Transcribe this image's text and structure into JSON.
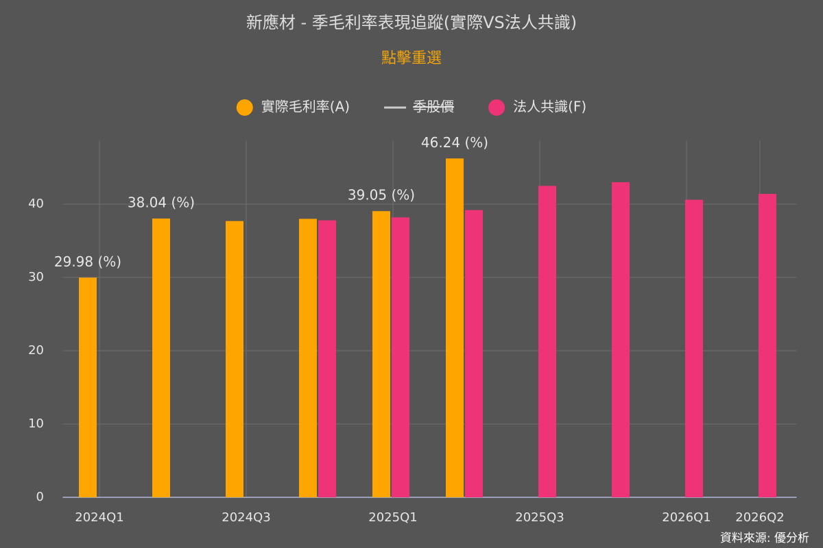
{
  "chart_data": {
    "type": "bar",
    "title": "新應材 - 季毛利率表現追蹤(實際VS法人共識)",
    "subtitle": "點擊重選",
    "categories": [
      "2024Q1",
      null,
      "2024Q3",
      null,
      "2025Q1",
      null,
      "2025Q3",
      null,
      "2026Q1",
      "2026Q2"
    ],
    "series": [
      {
        "name": "實際毛利率(A)",
        "color": "#ffa500",
        "values": [
          29.98,
          38.04,
          37.7,
          38.0,
          39.05,
          46.24,
          null,
          null,
          null,
          null
        ],
        "value_labels": [
          "29.98 (%)",
          "38.04 (%)",
          null,
          null,
          "39.05 (%)",
          "46.24 (%)",
          null,
          null,
          null,
          null
        ]
      },
      {
        "name": "季股價",
        "color": "#cccccc",
        "type": "line",
        "hidden": true,
        "values": [
          null,
          null,
          null,
          null,
          null,
          null,
          null,
          null,
          null,
          null
        ]
      },
      {
        "name": "法人共識(F)",
        "color": "#ee3377",
        "values": [
          null,
          null,
          null,
          37.8,
          38.2,
          39.2,
          42.5,
          43.0,
          40.6,
          41.4
        ]
      }
    ],
    "ylim": [
      0,
      48.7
    ],
    "yticks": [
      0,
      10,
      20,
      30,
      40
    ],
    "grid": true,
    "source": "資料來源: 優分析"
  }
}
